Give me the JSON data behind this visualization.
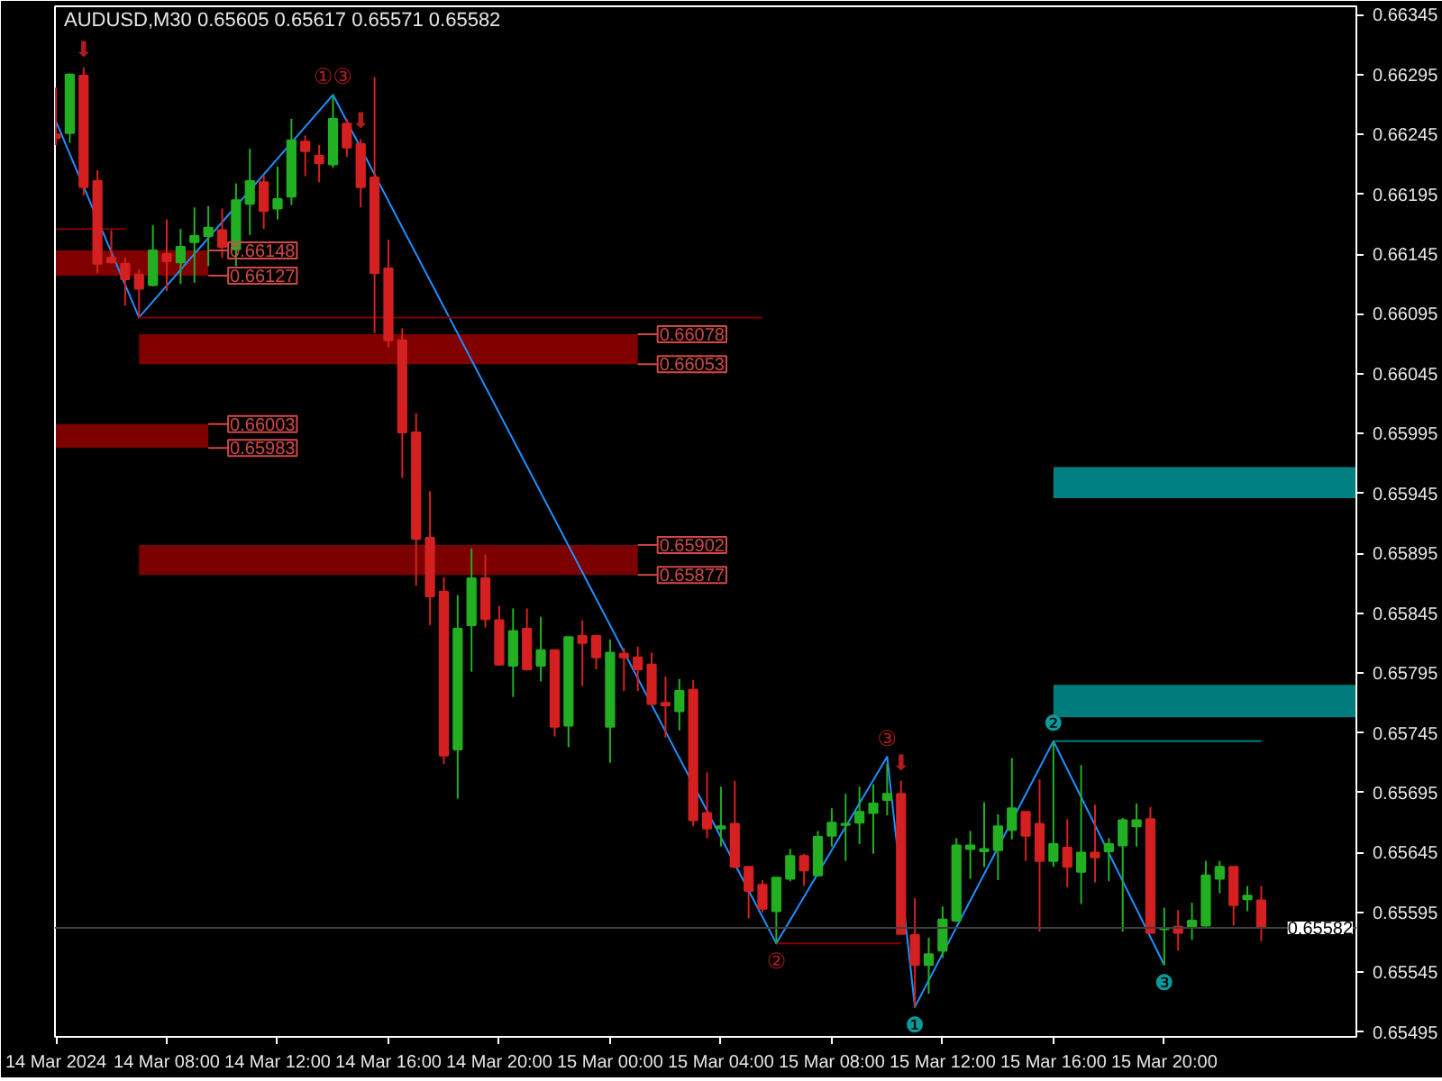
{
  "chart_data": {
    "type": "candlestick",
    "title": "AUDUSD,M30  0.65605 0.65617 0.65571 0.65582",
    "x": [
      "2024-03-14T04:00",
      "2024-03-14T04:30",
      "2024-03-14T05:00",
      "2024-03-14T05:30",
      "2024-03-14T06:00",
      "2024-03-14T06:30",
      "2024-03-14T07:00",
      "2024-03-14T07:30",
      "2024-03-14T08:00",
      "2024-03-14T08:30",
      "2024-03-14T09:00",
      "2024-03-14T09:30",
      "2024-03-14T10:00",
      "2024-03-14T10:30",
      "2024-03-14T11:00",
      "2024-03-14T11:30",
      "2024-03-14T12:00",
      "2024-03-14T12:30",
      "2024-03-14T13:00",
      "2024-03-14T13:30",
      "2024-03-14T14:00",
      "2024-03-14T14:30",
      "2024-03-14T15:00",
      "2024-03-14T15:30",
      "2024-03-14T16:00",
      "2024-03-14T16:30",
      "2024-03-14T17:00",
      "2024-03-14T17:30",
      "2024-03-14T18:00",
      "2024-03-14T18:30",
      "2024-03-14T19:00",
      "2024-03-14T19:30",
      "2024-03-14T20:00",
      "2024-03-14T20:30",
      "2024-03-14T21:00",
      "2024-03-14T21:30",
      "2024-03-14T22:00",
      "2024-03-14T22:30",
      "2024-03-14T23:00",
      "2024-03-14T23:30",
      "2024-03-15T00:00",
      "2024-03-15T00:30",
      "2024-03-15T01:00",
      "2024-03-15T01:30",
      "2024-03-15T02:00",
      "2024-03-15T02:30",
      "2024-03-15T03:00",
      "2024-03-15T03:30",
      "2024-03-15T04:00",
      "2024-03-15T04:30",
      "2024-03-15T05:00",
      "2024-03-15T05:30",
      "2024-03-15T06:00",
      "2024-03-15T06:30",
      "2024-03-15T07:00",
      "2024-03-15T07:30",
      "2024-03-15T08:00",
      "2024-03-15T08:30",
      "2024-03-15T09:00",
      "2024-03-15T09:30",
      "2024-03-15T10:00",
      "2024-03-15T10:30",
      "2024-03-15T11:00",
      "2024-03-15T11:30",
      "2024-03-15T12:00",
      "2024-03-15T12:30",
      "2024-03-15T13:00",
      "2024-03-15T13:30",
      "2024-03-15T14:00",
      "2024-03-15T14:30",
      "2024-03-15T15:00",
      "2024-03-15T15:30",
      "2024-03-15T16:00",
      "2024-03-15T16:30",
      "2024-03-15T17:00",
      "2024-03-15T17:30",
      "2024-03-15T18:00",
      "2024-03-15T18:30",
      "2024-03-15T19:00",
      "2024-03-15T19:30",
      "2024-03-15T20:00",
      "2024-03-15T20:30",
      "2024-03-15T21:00",
      "2024-03-15T21:30",
      "2024-03-15T22:00",
      "2024-03-15T22:30",
      "2024-03-15T23:00",
      "2024-03-15T23:30"
    ],
    "ohlc": [
      [
        0.66245,
        0.66284,
        0.66236,
        0.66242
      ],
      [
        0.66246,
        0.66296,
        0.66238,
        0.66295
      ],
      [
        0.66294,
        0.66301,
        0.66194,
        0.66201
      ],
      [
        0.66206,
        0.66215,
        0.66129,
        0.66137
      ],
      [
        0.66142,
        0.66165,
        0.66137,
        0.66138
      ],
      [
        0.66137,
        0.66142,
        0.66102,
        0.66124
      ],
      [
        0.66128,
        0.66132,
        0.66092,
        0.66116
      ],
      [
        0.66119,
        0.66169,
        0.66118,
        0.66148
      ],
      [
        0.66145,
        0.66174,
        0.66114,
        0.66139
      ],
      [
        0.66138,
        0.66166,
        0.6612,
        0.66151
      ],
      [
        0.66155,
        0.66184,
        0.66121,
        0.6616
      ],
      [
        0.6616,
        0.66185,
        0.66135,
        0.66167
      ],
      [
        0.66165,
        0.66183,
        0.66142,
        0.66151
      ],
      [
        0.66149,
        0.66204,
        0.66135,
        0.6619
      ],
      [
        0.66187,
        0.66233,
        0.66161,
        0.66206
      ],
      [
        0.66205,
        0.66211,
        0.66166,
        0.66181
      ],
      [
        0.66183,
        0.66218,
        0.66174,
        0.66191
      ],
      [
        0.66193,
        0.66258,
        0.66186,
        0.6624
      ],
      [
        0.66239,
        0.66244,
        0.6621,
        0.66231
      ],
      [
        0.66227,
        0.66236,
        0.66205,
        0.66221
      ],
      [
        0.6622,
        0.66278,
        0.66217,
        0.66258
      ],
      [
        0.66254,
        0.66258,
        0.66226,
        0.66234
      ],
      [
        0.66237,
        0.66241,
        0.66184,
        0.66201
      ],
      [
        0.66209,
        0.66293,
        0.66079,
        0.66129
      ],
      [
        0.66133,
        0.66157,
        0.66067,
        0.66073
      ],
      [
        0.66073,
        0.66083,
        0.65958,
        0.65996
      ],
      [
        0.65996,
        0.66012,
        0.65868,
        0.65907
      ],
      [
        0.65908,
        0.65947,
        0.65835,
        0.65859
      ],
      [
        0.65863,
        0.65875,
        0.65719,
        0.65726
      ],
      [
        0.65731,
        0.6586,
        0.6569,
        0.65832
      ],
      [
        0.65835,
        0.65899,
        0.65796,
        0.65874
      ],
      [
        0.65874,
        0.65894,
        0.65833,
        0.6584
      ],
      [
        0.65839,
        0.65851,
        0.65801,
        0.65802
      ],
      [
        0.65801,
        0.65849,
        0.65775,
        0.6583
      ],
      [
        0.65832,
        0.65849,
        0.65797,
        0.65798
      ],
      [
        0.65801,
        0.65842,
        0.65788,
        0.65814
      ],
      [
        0.65814,
        0.65814,
        0.65742,
        0.6575
      ],
      [
        0.65751,
        0.65825,
        0.65733,
        0.65825
      ],
      [
        0.65826,
        0.65839,
        0.65784,
        0.6582
      ],
      [
        0.65826,
        0.65826,
        0.65798,
        0.65808
      ],
      [
        0.6575,
        0.65823,
        0.6572,
        0.65812
      ],
      [
        0.65811,
        0.65816,
        0.6578,
        0.65808
      ],
      [
        0.65808,
        0.65817,
        0.6578,
        0.65798
      ],
      [
        0.65802,
        0.65812,
        0.65768,
        0.65769
      ],
      [
        0.6577,
        0.65792,
        0.65741,
        0.65768
      ],
      [
        0.65763,
        0.6579,
        0.65747,
        0.6578
      ],
      [
        0.65781,
        0.65789,
        0.65667,
        0.65672
      ],
      [
        0.65678,
        0.65712,
        0.65657,
        0.65665
      ],
      [
        0.65665,
        0.657,
        0.6565,
        0.65667
      ],
      [
        0.65669,
        0.65705,
        0.65632,
        0.65633
      ],
      [
        0.65633,
        0.65633,
        0.6559,
        0.65613
      ],
      [
        0.65618,
        0.65622,
        0.65595,
        0.65598
      ],
      [
        0.65596,
        0.65624,
        0.65569,
        0.65624
      ],
      [
        0.65623,
        0.65648,
        0.65621,
        0.65642
      ],
      [
        0.65642,
        0.65644,
        0.65617,
        0.6563
      ],
      [
        0.65626,
        0.65663,
        0.65625,
        0.65658
      ],
      [
        0.65659,
        0.65682,
        0.6565,
        0.6567
      ],
      [
        0.65668,
        0.65694,
        0.65638,
        0.65669
      ],
      [
        0.6567,
        0.657,
        0.65652,
        0.65679
      ],
      [
        0.65678,
        0.65702,
        0.65644,
        0.65686
      ],
      [
        0.65689,
        0.65719,
        0.65676,
        0.65694
      ],
      [
        0.65694,
        0.65705,
        0.65577,
        0.65577
      ],
      [
        0.65576,
        0.65607,
        0.65516,
        0.65551
      ],
      [
        0.65551,
        0.65574,
        0.65527,
        0.6556
      ],
      [
        0.65563,
        0.656,
        0.65557,
        0.65589
      ],
      [
        0.65588,
        0.65657,
        0.65587,
        0.65651
      ],
      [
        0.65648,
        0.65663,
        0.65623,
        0.65651
      ],
      [
        0.65646,
        0.65687,
        0.65633,
        0.65648
      ],
      [
        0.65647,
        0.65677,
        0.65622,
        0.65667
      ],
      [
        0.65664,
        0.65724,
        0.65656,
        0.65682
      ],
      [
        0.65679,
        0.65679,
        0.65638,
        0.65659
      ],
      [
        0.65669,
        0.65706,
        0.65579,
        0.65638
      ],
      [
        0.65638,
        0.65738,
        0.65633,
        0.65652
      ],
      [
        0.65649,
        0.65673,
        0.65616,
        0.65633
      ],
      [
        0.65629,
        0.65718,
        0.65602,
        0.65645
      ],
      [
        0.65645,
        0.65685,
        0.6562,
        0.65641
      ],
      [
        0.65646,
        0.65657,
        0.65621,
        0.65652
      ],
      [
        0.65651,
        0.65674,
        0.65579,
        0.65672
      ],
      [
        0.65667,
        0.65686,
        0.6565,
        0.65672
      ],
      [
        0.65673,
        0.65683,
        0.65578,
        0.65578
      ],
      [
        0.65581,
        0.65599,
        0.65551,
        0.65582
      ],
      [
        0.65583,
        0.65597,
        0.65563,
        0.65578
      ],
      [
        0.65582,
        0.65603,
        0.65572,
        0.65588
      ],
      [
        0.65584,
        0.65638,
        0.65583,
        0.65626
      ],
      [
        0.65623,
        0.65638,
        0.65611,
        0.65633
      ],
      [
        0.65633,
        0.65633,
        0.65584,
        0.65601
      ],
      [
        0.65606,
        0.65617,
        0.65596,
        0.65609
      ],
      [
        0.65605,
        0.65617,
        0.65571,
        0.65582
      ]
    ],
    "colors": [
      "#d42020",
      "#22b022",
      "#d42020",
      "#d42020",
      "#d42020",
      "#d42020",
      "#d42020",
      "#22b022",
      "#d42020",
      "#22b022",
      "#22b022",
      "#22b022",
      "#d42020",
      "#22b022",
      "#22b022",
      "#d42020",
      "#22b022",
      "#22b022",
      "#d42020",
      "#d42020",
      "#22b022",
      "#d42020",
      "#d42020",
      "#d42020",
      "#d42020",
      "#d42020",
      "#d42020",
      "#d42020",
      "#d42020",
      "#22b022",
      "#22b022",
      "#d42020",
      "#d42020",
      "#22b022",
      "#d42020",
      "#22b022",
      "#d42020",
      "#22b022",
      "#d42020",
      "#d42020",
      "#22b022",
      "#d42020",
      "#d42020",
      "#d42020",
      "#d42020",
      "#22b022",
      "#d42020",
      "#d42020",
      "#22b022",
      "#d42020",
      "#d42020",
      "#d42020",
      "#22b022",
      "#22b022",
      "#d42020",
      "#22b022",
      "#22b022",
      "#22b022",
      "#22b022",
      "#22b022",
      "#22b022",
      "#d42020",
      "#d42020",
      "#22b022",
      "#22b022",
      "#22b022",
      "#22b022",
      "#22b022",
      "#22b022",
      "#22b022",
      "#d42020",
      "#d42020",
      "#22b022",
      "#d42020",
      "#22b022",
      "#d42020",
      "#22b022",
      "#22b022",
      "#22b022",
      "#d42020",
      "#22b022",
      "#d42020",
      "#22b022",
      "#22b022",
      "#22b022",
      "#d42020",
      "#22b022",
      "#d42020"
    ],
    "series": [
      {
        "type": "line",
        "color": "#1e90ff",
        "x": [
          "2024-03-14T04:00",
          "2024-03-14T07:00",
          "2024-03-14T14:00",
          "2024-03-15T06:00",
          "2024-03-15T10:00",
          "2024-03-15T11:00",
          "2024-03-15T16:00",
          "2024-03-15T20:00"
        ],
        "values": [
          0.66256,
          0.66092,
          0.66278,
          0.65569,
          0.65725,
          0.65516,
          0.65738,
          0.65551
        ]
      },
      {
        "type": "line",
        "color": "#008080",
        "x": [
          "2024-03-15T16:00",
          "2024-03-15T23:30"
        ],
        "values": [
          0.65738,
          0.65738
        ]
      },
      {
        "type": "line",
        "color": "#800000",
        "x": [
          "2024-03-15T06:00",
          "2024-03-15T10:30"
        ],
        "values": [
          0.65569,
          0.65569
        ]
      },
      {
        "type": "line",
        "color": "#800000",
        "x": [
          "2024-03-14T07:00",
          "2024-03-15T05:30"
        ],
        "values": [
          0.66092,
          0.66092
        ]
      },
      {
        "type": "line",
        "color": "#800000",
        "x": [
          "2024-03-14T04:00",
          "2024-03-14T06:30"
        ],
        "values": [
          0.66166,
          0.66166
        ]
      },
      {
        "type": "line",
        "color": "#800000",
        "x": [
          "2024-03-14T04:00",
          "2024-03-14T09:30"
        ],
        "values": [
          null,
          null
        ],
        "lower": [
          0.66127,
          0.66127
        ],
        "upper": [
          0.66148,
          0.66148
        ]
      },
      {
        "type": "line",
        "color": "#7c0000",
        "x": [
          "2024-03-14T04:00",
          "2024-03-14T09:30"
        ],
        "values": [
          null,
          null
        ],
        "lower": [
          0.65983,
          0.65983
        ],
        "upper": [
          0.66003,
          0.66003
        ]
      },
      {
        "type": "line",
        "color": "#800000",
        "x": [
          "2024-03-14T07:00",
          "2024-03-15T01:00"
        ],
        "values": [
          null,
          null
        ],
        "lower": [
          0.66053,
          0.66053
        ],
        "upper": [
          0.66078,
          0.66078
        ]
      },
      {
        "type": "line",
        "color": "#7c0000",
        "x": [
          "2024-03-14T07:00",
          "2024-03-15T01:00"
        ],
        "values": [
          null,
          null
        ],
        "lower": [
          0.65877,
          0.65877
        ],
        "upper": [
          0.65902,
          0.65902
        ]
      },
      {
        "type": "line",
        "color": "#008080",
        "x": [
          "2024-03-15T16:00",
          "2024-03-16T02:56"
        ],
        "values": [
          null,
          null
        ],
        "lower": [
          0.65941,
          0.65941
        ],
        "upper": [
          0.65967,
          0.65967
        ]
      },
      {
        "type": "line",
        "color": "#007c7c",
        "x": [
          "2024-03-15T16:00",
          "2024-03-16T02:56"
        ],
        "values": [
          null,
          null
        ],
        "lower": [
          0.65758,
          0.65758
        ],
        "upper": [
          0.65785,
          0.65785
        ]
      }
    ],
    "ref_lines": [
      {
        "axis": "y",
        "value": 0.65582,
        "label": "0.65582",
        "color": "#404040"
      }
    ],
    "annotations": [
      {
        "text": "0.66148",
        "x": "2024-03-14T09:30",
        "y": 0.66148
      },
      {
        "text": "0.66127",
        "x": "2024-03-14T09:30",
        "y": 0.66127
      },
      {
        "text": "0.66003",
        "x": "2024-03-14T09:30",
        "y": 0.66003
      },
      {
        "text": "0.65983",
        "x": "2024-03-14T09:30",
        "y": 0.65983
      },
      {
        "text": "0.66078",
        "x": "2024-03-15T01:00",
        "y": 0.66078
      },
      {
        "text": "0.66053",
        "x": "2024-03-15T01:00",
        "y": 0.66053
      },
      {
        "text": "0.65902",
        "x": "2024-03-15T01:00",
        "y": 0.65902
      },
      {
        "text": "0.65877",
        "x": "2024-03-15T01:00",
        "y": 0.65877
      },
      {
        "text": "①③",
        "x": "2024-03-14T14:00",
        "y": 0.66278
      },
      {
        "text": "②",
        "x": "2024-03-15T06:00",
        "y": 0.65569
      },
      {
        "text": "③",
        "x": "2024-03-15T10:00",
        "y": 0.65725
      },
      {
        "text": "❶",
        "x": "2024-03-15T11:00",
        "y": 0.65516
      },
      {
        "text": "❷",
        "x": "2024-03-15T16:00",
        "y": 0.65738
      },
      {
        "text": "❸",
        "x": "2024-03-15T20:00",
        "y": 0.65551
      },
      {
        "text": "⬇",
        "x": "2024-03-14T05:00",
        "y": 0.66301
      },
      {
        "text": "⬇",
        "x": "2024-03-14T15:00",
        "y": 0.66241
      },
      {
        "text": "⬇",
        "x": "2024-03-15T10:30",
        "y": 0.65705
      }
    ],
    "xlim": [
      "2024-03-14T03:58",
      "2024-03-16T02:56"
    ],
    "ylim": [
      0.65491,
      0.66352
    ],
    "xticks": [
      {
        "value": "2024-03-14T04:00",
        "label": "14 Mar 2024"
      },
      {
        "value": "2024-03-14T08:00",
        "label": "14 Mar 08:00"
      },
      {
        "value": "2024-03-14T12:00",
        "label": "14 Mar 12:00"
      },
      {
        "value": "2024-03-14T16:00",
        "label": "14 Mar 16:00"
      },
      {
        "value": "2024-03-14T20:00",
        "label": "14 Mar 20:00"
      },
      {
        "value": "2024-03-15T00:00",
        "label": "15 Mar 00:00"
      },
      {
        "value": "2024-03-15T04:00",
        "label": "15 Mar 04:00"
      },
      {
        "value": "2024-03-15T08:00",
        "label": "15 Mar 08:00"
      },
      {
        "value": "2024-03-15T12:00",
        "label": "15 Mar 12:00"
      },
      {
        "value": "2024-03-15T16:00",
        "label": "15 Mar 16:00"
      },
      {
        "value": "2024-03-15T20:00",
        "label": "15 Mar 20:00"
      }
    ],
    "yticks": [
      0.66345,
      0.66295,
      0.66245,
      0.66195,
      0.66145,
      0.66095,
      0.66045,
      0.65995,
      0.65945,
      0.65895,
      0.65845,
      0.65795,
      0.65745,
      0.65695,
      0.65645,
      0.65595,
      0.65545,
      0.65495
    ]
  }
}
